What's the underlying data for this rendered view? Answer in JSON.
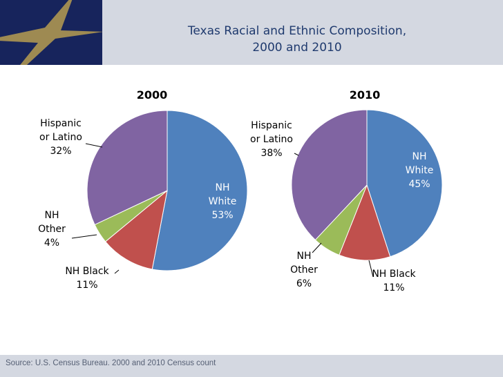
{
  "slide": {
    "title_line1": "Texas Racial and Ethnic Composition,",
    "title_line2": "2000 and 2010",
    "source": "Source: U.S. Census Bureau. 2000 and 2010 Census count",
    "logo_icon": "star-icon",
    "colors": {
      "header": "#d4d8e1",
      "logo_bg": "#17245c",
      "star": "#9e8a52",
      "title": "#1f3a6e"
    }
  },
  "chart_data": [
    {
      "type": "pie",
      "title": "2000",
      "start_angle_deg": 90,
      "direction": "clockwise",
      "slices": [
        {
          "label": [
            "NH",
            "White",
            "53%"
          ],
          "value": 53,
          "color": "#4f81bd"
        },
        {
          "label": [
            "NH Black",
            "11%"
          ],
          "value": 11,
          "color": "#c0504d"
        },
        {
          "label": [
            "NH",
            "Other",
            "4%"
          ],
          "value": 4,
          "color": "#9bbb59"
        },
        {
          "label": [
            "Hispanic",
            "or Latino",
            "32%"
          ],
          "value": 32,
          "color": "#8064a2"
        }
      ]
    },
    {
      "type": "pie",
      "title": "2010",
      "start_angle_deg": 90,
      "direction": "clockwise",
      "slices": [
        {
          "label": [
            "NH",
            "White",
            "45%"
          ],
          "value": 45,
          "color": "#4f81bd"
        },
        {
          "label": [
            "NH Black",
            "11%"
          ],
          "value": 11,
          "color": "#c0504d"
        },
        {
          "label": [
            "NH",
            "Other",
            "6%"
          ],
          "value": 6,
          "color": "#9bbb59"
        },
        {
          "label": [
            "Hispanic",
            "or Latino",
            "38%"
          ],
          "value": 38,
          "color": "#8064a2"
        }
      ]
    }
  ]
}
